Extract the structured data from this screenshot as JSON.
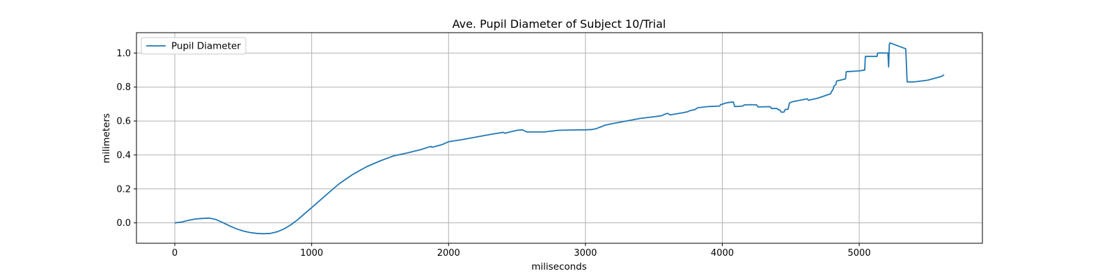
{
  "chart_data": {
    "type": "line",
    "title": "Ave. Pupil Diameter of Subject 10/Trial",
    "xlabel": "miliseconds",
    "ylabel": "milimeters",
    "xlim": [
      -280,
      5900
    ],
    "ylim": [
      -0.12,
      1.12
    ],
    "xticks": [
      0,
      1000,
      2000,
      3000,
      4000,
      5000
    ],
    "yticks": [
      0.0,
      0.2,
      0.4,
      0.6,
      0.8,
      1.0
    ],
    "xtick_labels": [
      "0",
      "1000",
      "2000",
      "3000",
      "4000",
      "5000"
    ],
    "ytick_labels": [
      "0.0",
      "0.2",
      "0.4",
      "0.6",
      "0.8",
      "1.0"
    ],
    "grid": true,
    "legend_position": "top-left",
    "series": [
      {
        "name": "Pupil Diameter",
        "color": "#1f77b4",
        "x": [
          0,
          50,
          100,
          150,
          200,
          250,
          300,
          350,
          400,
          450,
          500,
          550,
          600,
          650,
          700,
          750,
          800,
          850,
          900,
          950,
          1000,
          1050,
          1100,
          1150,
          1200,
          1300,
          1400,
          1500,
          1600,
          1700,
          1800,
          1870,
          1880,
          1950,
          2000,
          2100,
          2200,
          2300,
          2400,
          2410,
          2450,
          2500,
          2540,
          2560,
          2570,
          2600,
          2650,
          2700,
          2800,
          2900,
          3000,
          3050,
          3080,
          3100,
          3120,
          3140,
          3200,
          3300,
          3400,
          3500,
          3550,
          3560,
          3580,
          3600,
          3620,
          3700,
          3750,
          3760,
          3800,
          3820,
          3900,
          3980,
          3990,
          4000,
          4020,
          4040,
          4060,
          4080,
          4090,
          4150,
          4160,
          4180,
          4200,
          4250,
          4260,
          4350,
          4360,
          4400,
          4410,
          4420,
          4430,
          4450,
          4460,
          4480,
          4490,
          4500,
          4520,
          4620,
          4630,
          4700,
          4790,
          4800,
          4810,
          4815,
          4830,
          4835,
          4900,
          4905,
          5000,
          5040,
          5045,
          5130,
          5135,
          5200,
          5210,
          5215,
          5220,
          5225,
          5340,
          5350,
          5400,
          5500,
          5600,
          5620
        ],
        "y": [
          0.0,
          0.005,
          0.015,
          0.023,
          0.026,
          0.028,
          0.02,
          0.002,
          -0.018,
          -0.035,
          -0.048,
          -0.057,
          -0.062,
          -0.064,
          -0.062,
          -0.052,
          -0.035,
          -0.01,
          0.02,
          0.055,
          0.09,
          0.125,
          0.16,
          0.195,
          0.23,
          0.285,
          0.33,
          0.365,
          0.395,
          0.412,
          0.432,
          0.45,
          0.445,
          0.46,
          0.478,
          0.49,
          0.505,
          0.52,
          0.533,
          0.528,
          0.535,
          0.545,
          0.548,
          0.54,
          0.535,
          0.535,
          0.535,
          0.535,
          0.545,
          0.547,
          0.548,
          0.55,
          0.555,
          0.562,
          0.567,
          0.575,
          0.585,
          0.6,
          0.615,
          0.625,
          0.63,
          0.632,
          0.64,
          0.645,
          0.636,
          0.647,
          0.655,
          0.66,
          0.667,
          0.678,
          0.685,
          0.688,
          0.698,
          0.698,
          0.705,
          0.708,
          0.71,
          0.712,
          0.685,
          0.688,
          0.695,
          0.695,
          0.696,
          0.695,
          0.683,
          0.684,
          0.673,
          0.674,
          0.665,
          0.665,
          0.652,
          0.652,
          0.668,
          0.668,
          0.705,
          0.71,
          0.715,
          0.73,
          0.722,
          0.735,
          0.76,
          0.775,
          0.788,
          0.805,
          0.815,
          0.835,
          0.848,
          0.89,
          0.895,
          0.9,
          0.98,
          0.98,
          1.0,
          1.0,
          1.0,
          0.918,
          1.05,
          1.06,
          1.025,
          0.83,
          0.83,
          0.84,
          0.862,
          0.872
        ]
      }
    ]
  }
}
